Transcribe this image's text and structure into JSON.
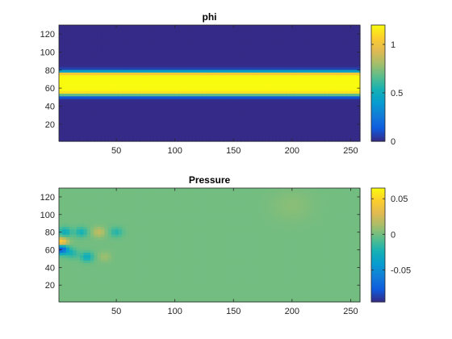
{
  "chart_data": [
    {
      "type": "heatmap",
      "title": "phi",
      "xlim": [
        1,
        258
      ],
      "ylim": [
        1,
        130
      ],
      "xticks": [
        50,
        100,
        150,
        200,
        250
      ],
      "yticks": [
        20,
        40,
        60,
        80,
        100,
        120
      ],
      "clim": [
        0,
        1.2
      ],
      "cbar_ticks": [
        0,
        0.5,
        1
      ],
      "grid": false,
      "colorbar": "right",
      "colormap": "parula",
      "field": {
        "description_value": "uniform 0 background with a horizontal band of value ~1.2",
        "background": 0.0,
        "band": {
          "y_from": 52,
          "y_to": 78,
          "value": 1.2
        }
      }
    },
    {
      "type": "heatmap",
      "title": "Pressure",
      "xlim": [
        1,
        258
      ],
      "ylim": [
        1,
        130
      ],
      "xticks": [
        50,
        100,
        150,
        200,
        250
      ],
      "yticks": [
        20,
        40,
        60,
        80,
        100,
        120
      ],
      "clim": [
        -0.095,
        0.065
      ],
      "cbar_ticks": [
        -0.05,
        0,
        0.05
      ],
      "grid": false,
      "colorbar": "right",
      "colormap": "parula",
      "field": {
        "background": 0.0,
        "features": [
          {
            "x": 3,
            "y": 61,
            "value": -0.09
          },
          {
            "x": 3,
            "y": 68,
            "value": 0.06
          },
          {
            "x": 6,
            "y": 80,
            "value": -0.03
          },
          {
            "x": 20,
            "y": 80,
            "value": -0.025
          },
          {
            "x": 35,
            "y": 80,
            "value": 0.02
          },
          {
            "x": 50,
            "y": 80,
            "value": -0.02
          },
          {
            "x": 12,
            "y": 56,
            "value": -0.02
          },
          {
            "x": 25,
            "y": 52,
            "value": -0.03
          },
          {
            "x": 40,
            "y": 52,
            "value": 0.01
          },
          {
            "x": 200,
            "y": 110,
            "value": 0.005
          }
        ]
      }
    }
  ]
}
